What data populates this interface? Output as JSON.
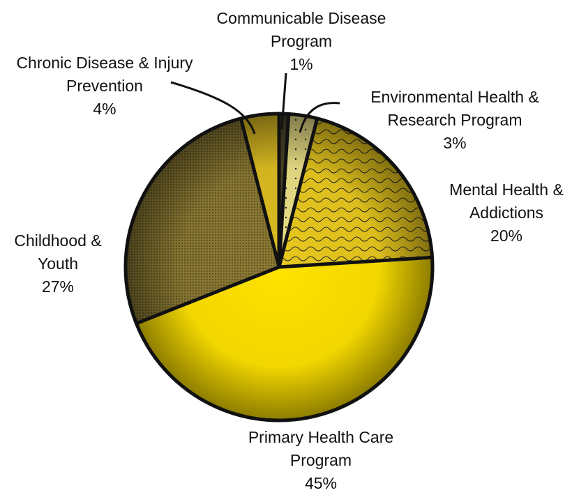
{
  "chart_data": {
    "type": "pie",
    "categories": [
      "Communicable Disease Program",
      "Environmental Health & Research Program",
      "Mental Health & Addictions",
      "Primary Health Care Program",
      "Childhood & Youth",
      "Chronic Disease & Injury Prevention"
    ],
    "values": [
      1,
      3,
      20,
      45,
      27,
      4
    ],
    "value_labels": [
      "1%",
      "3%",
      "20%",
      "45%",
      "27%",
      "4%"
    ],
    "colors": [
      "#4a4426",
      "#eadf86",
      "#e8c81e",
      "#ffe200",
      "#8c7a34",
      "#dcbc22"
    ]
  }
}
